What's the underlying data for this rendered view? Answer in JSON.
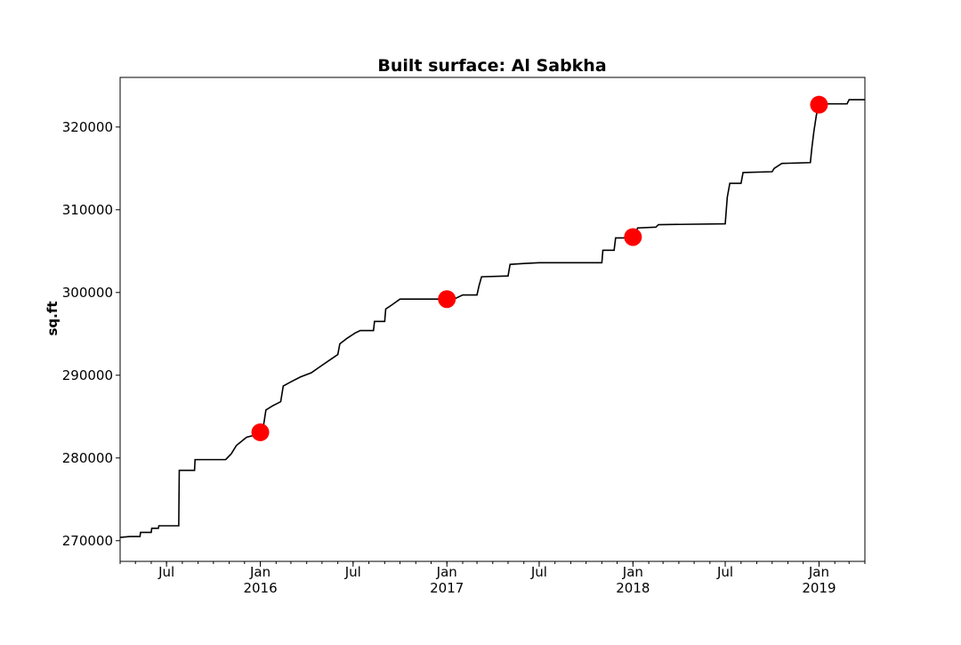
{
  "chart_data": {
    "type": "line",
    "title": "Built surface: Al Sabkha",
    "xlabel": "",
    "ylabel": "sq.ft",
    "xlim": [
      "2015-04-01",
      "2019-04-01"
    ],
    "ylim": [
      267500,
      326000
    ],
    "grid": false,
    "legend": "none",
    "y_ticks": [
      270000,
      280000,
      290000,
      300000,
      310000,
      320000
    ],
    "y_tick_labels": [
      "270000",
      "280000",
      "290000",
      "300000",
      "310000",
      "320000"
    ],
    "x_major_ticks": [
      {
        "date": "2015-07-01",
        "label": "Jul",
        "year": ""
      },
      {
        "date": "2016-01-01",
        "label": "Jan",
        "year": "2016"
      },
      {
        "date": "2016-07-01",
        "label": "Jul",
        "year": ""
      },
      {
        "date": "2017-01-01",
        "label": "Jan",
        "year": "2017"
      },
      {
        "date": "2017-07-01",
        "label": "Jul",
        "year": ""
      },
      {
        "date": "2018-01-01",
        "label": "Jan",
        "year": "2018"
      },
      {
        "date": "2018-07-01",
        "label": "Jul",
        "year": ""
      },
      {
        "date": "2019-01-01",
        "label": "Jan",
        "year": "2019"
      }
    ],
    "line_color": "#000000",
    "marker_color": "#ff0000",
    "series": [
      {
        "style": "step-line",
        "points": [
          [
            "2015-04-01",
            270400
          ],
          [
            "2015-04-20",
            270500
          ],
          [
            "2015-05-10",
            270500
          ],
          [
            "2015-05-11",
            271000
          ],
          [
            "2015-06-01",
            271000
          ],
          [
            "2015-06-02",
            271500
          ],
          [
            "2015-06-15",
            271500
          ],
          [
            "2015-06-16",
            271800
          ],
          [
            "2015-07-25",
            271800
          ],
          [
            "2015-07-26",
            278500
          ],
          [
            "2015-08-25",
            278500
          ],
          [
            "2015-08-26",
            279800
          ],
          [
            "2015-10-25",
            279800
          ],
          [
            "2015-11-05",
            280500
          ],
          [
            "2015-11-15",
            281500
          ],
          [
            "2015-12-05",
            282500
          ],
          [
            "2016-01-05",
            283000
          ],
          [
            "2016-01-12",
            285800
          ],
          [
            "2016-01-25",
            286300
          ],
          [
            "2016-02-10",
            286800
          ],
          [
            "2016-02-15",
            288700
          ],
          [
            "2016-03-01",
            289200
          ],
          [
            "2016-03-20",
            289800
          ],
          [
            "2016-04-10",
            290300
          ],
          [
            "2016-05-01",
            291200
          ],
          [
            "2016-05-20",
            292000
          ],
          [
            "2016-06-01",
            292500
          ],
          [
            "2016-06-05",
            293800
          ],
          [
            "2016-06-20",
            294500
          ],
          [
            "2016-07-05",
            295100
          ],
          [
            "2016-07-15",
            295400
          ],
          [
            "2016-08-10",
            295400
          ],
          [
            "2016-08-12",
            296500
          ],
          [
            "2016-09-01",
            296500
          ],
          [
            "2016-09-03",
            298000
          ],
          [
            "2016-09-15",
            298500
          ],
          [
            "2016-10-01",
            299200
          ],
          [
            "2017-01-15",
            299200
          ],
          [
            "2017-02-01",
            299700
          ],
          [
            "2017-03-01",
            299700
          ],
          [
            "2017-03-05",
            300800
          ],
          [
            "2017-03-10",
            301900
          ],
          [
            "2017-05-01",
            302000
          ],
          [
            "2017-05-05",
            303400
          ],
          [
            "2017-06-01",
            303500
          ],
          [
            "2017-07-01",
            303600
          ],
          [
            "2017-11-01",
            303600
          ],
          [
            "2017-11-03",
            305100
          ],
          [
            "2017-11-25",
            305100
          ],
          [
            "2017-11-28",
            306600
          ],
          [
            "2018-01-05",
            306600
          ],
          [
            "2018-01-10",
            307800
          ],
          [
            "2018-02-15",
            307900
          ],
          [
            "2018-02-20",
            308200
          ],
          [
            "2018-07-01",
            308300
          ],
          [
            "2018-07-05",
            311500
          ],
          [
            "2018-07-10",
            313200
          ],
          [
            "2018-08-01",
            313200
          ],
          [
            "2018-08-05",
            314500
          ],
          [
            "2018-10-01",
            314600
          ],
          [
            "2018-10-05",
            315000
          ],
          [
            "2018-10-20",
            315600
          ],
          [
            "2018-12-15",
            315700
          ],
          [
            "2018-12-18",
            317500
          ],
          [
            "2018-12-22",
            319500
          ],
          [
            "2018-12-27",
            321500
          ],
          [
            "2019-01-01",
            322600
          ],
          [
            "2019-01-10",
            322800
          ],
          [
            "2019-02-25",
            322800
          ],
          [
            "2019-03-01",
            323300
          ],
          [
            "2019-04-01",
            323300
          ]
        ]
      },
      {
        "style": "markers",
        "points": [
          [
            "2016-01-01",
            283100
          ],
          [
            "2017-01-01",
            299200
          ],
          [
            "2018-01-01",
            306700
          ],
          [
            "2019-01-01",
            322700
          ]
        ]
      }
    ]
  }
}
